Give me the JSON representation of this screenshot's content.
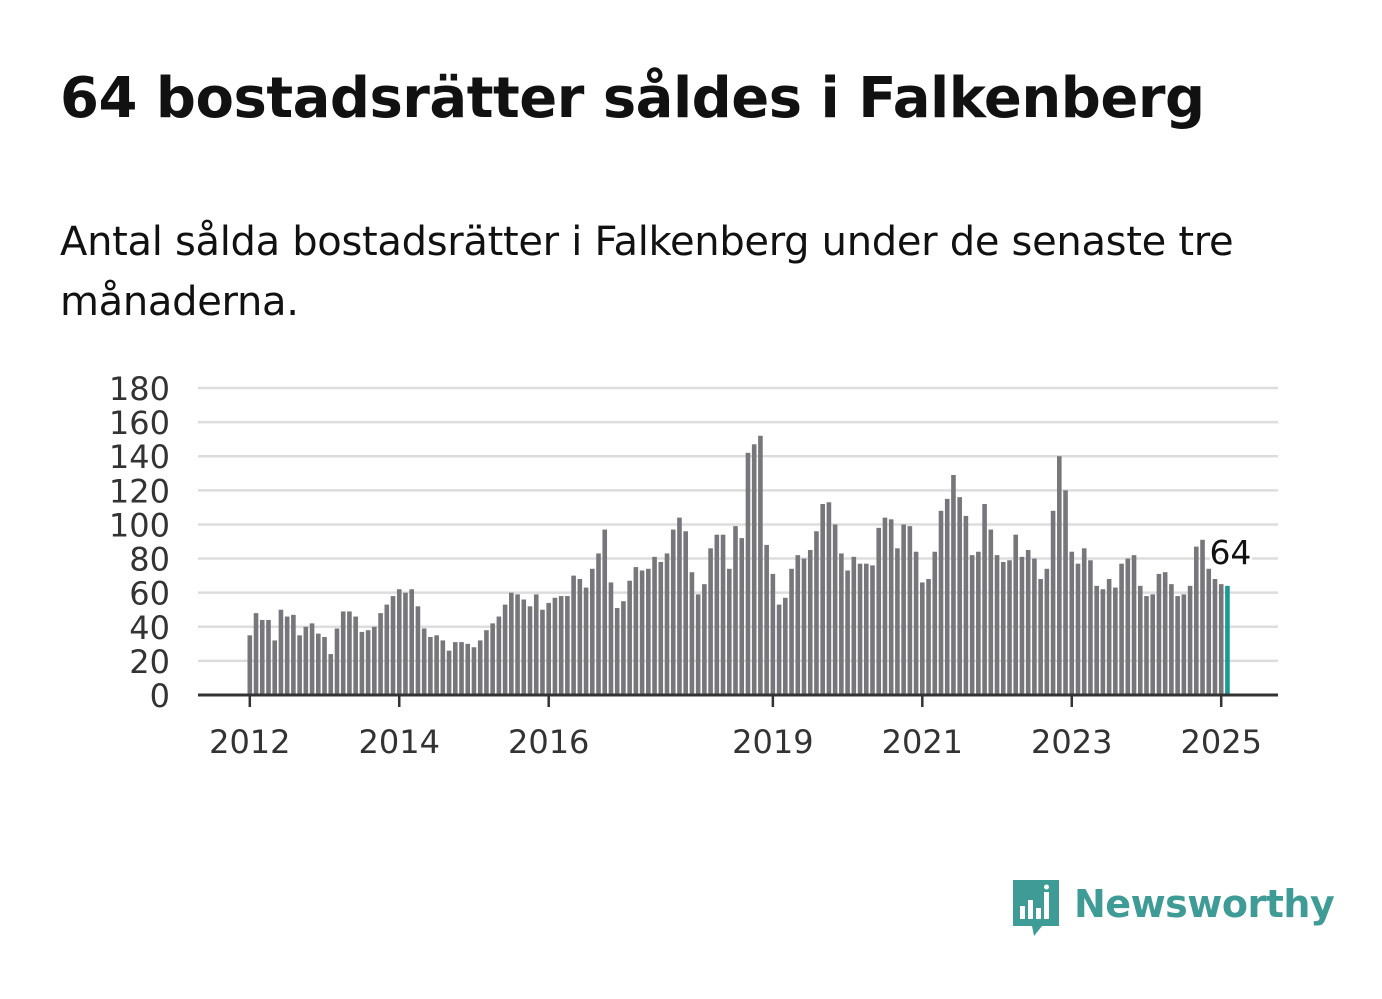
{
  "header": {
    "title": "64 bostadsrätter såldes i Falkenberg",
    "subtitle": "Antal sålda bostadsrätter i Falkenberg under de senaste tre månaderna."
  },
  "brand": {
    "name": "Newsworthy",
    "color": "#3e9b95"
  },
  "colors": {
    "bar": "#77767b",
    "highlight": "#1a9a93",
    "grid": "#dddddd",
    "axis": "#333333"
  },
  "chart_data": {
    "type": "bar",
    "title": "",
    "xlabel": "",
    "ylabel": "",
    "ylim": [
      0,
      180
    ],
    "yticks": [
      "0",
      "20",
      "40",
      "60",
      "80",
      "100",
      "120",
      "140",
      "160",
      "180"
    ],
    "xticks": [
      "2012",
      "2014",
      "2016",
      "2019",
      "2021",
      "2023",
      "2025"
    ],
    "grid": true,
    "start_month": "2012-01",
    "values": [
      35,
      48,
      44,
      44,
      32,
      50,
      46,
      47,
      35,
      40,
      42,
      36,
      34,
      24,
      39,
      49,
      49,
      46,
      37,
      38,
      40,
      48,
      53,
      58,
      62,
      60,
      62,
      52,
      39,
      34,
      35,
      32,
      26,
      31,
      31,
      30,
      28,
      32,
      38,
      42,
      46,
      53,
      60,
      59,
      56,
      52,
      59,
      50,
      54,
      57,
      58,
      58,
      70,
      68,
      63,
      74,
      83,
      97,
      66,
      51,
      55,
      67,
      75,
      73,
      74,
      81,
      78,
      83,
      97,
      104,
      96,
      72,
      59,
      65,
      86,
      94,
      94,
      74,
      99,
      92,
      142,
      147,
      152,
      88,
      71,
      53,
      57,
      74,
      82,
      80,
      85,
      96,
      112,
      113,
      100,
      83,
      73,
      81,
      77,
      77,
      76,
      98,
      104,
      103,
      86,
      100,
      99,
      84,
      66,
      68,
      84,
      108,
      115,
      129,
      116,
      105,
      82,
      84,
      112,
      97,
      82,
      78,
      79,
      94,
      81,
      85,
      80,
      68,
      74,
      108,
      140,
      120,
      84,
      77,
      86,
      79,
      64,
      62,
      68,
      63,
      77,
      80,
      82,
      64,
      58,
      59,
      71,
      72,
      65,
      58,
      59,
      64,
      87,
      91,
      74,
      68,
      65,
      64
    ],
    "highlight_label": "64"
  }
}
